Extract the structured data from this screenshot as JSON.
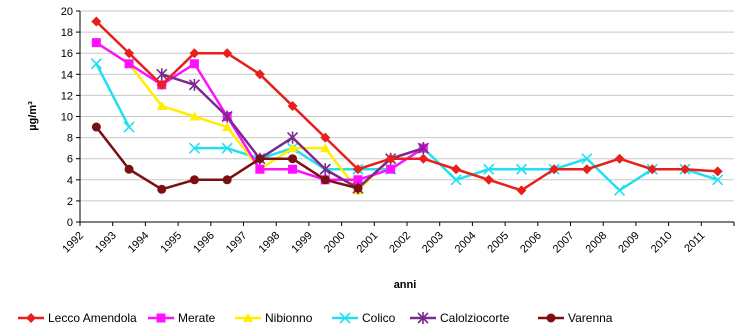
{
  "chart_data": {
    "type": "line",
    "title": "",
    "xlabel": "anni",
    "ylabel": "µg/m³",
    "ylim": [
      0,
      20
    ],
    "ytick_step": 2,
    "grid": "horizontal",
    "legend_position": "bottom",
    "categories": [
      "1992",
      "1993",
      "1994",
      "1995",
      "1996",
      "1997",
      "1998",
      "1999",
      "2000",
      "2001",
      "2002",
      "2003",
      "2004",
      "2005",
      "2006",
      "2007",
      "2008",
      "2009",
      "2010",
      "2011"
    ],
    "series": [
      {
        "name": "Lecco Amendola",
        "color": "#e8201c",
        "marker": "diamond",
        "points": [
          {
            "x": 1992.5,
            "y": 19
          },
          {
            "x": 1993.5,
            "y": 16
          },
          {
            "x": 1994.5,
            "y": 13
          },
          {
            "x": 1995.5,
            "y": 16
          },
          {
            "x": 1996.5,
            "y": 16
          },
          {
            "x": 1997.5,
            "y": 14
          },
          {
            "x": 1998.5,
            "y": 11
          },
          {
            "x": 1999.5,
            "y": 8
          },
          {
            "x": 2000.5,
            "y": 5
          },
          {
            "x": 2001.5,
            "y": 6
          },
          {
            "x": 2002.5,
            "y": 6
          },
          {
            "x": 2003.5,
            "y": 5
          },
          {
            "x": 2004.5,
            "y": 4
          },
          {
            "x": 2005.5,
            "y": 3
          },
          {
            "x": 2006.5,
            "y": 5
          },
          {
            "x": 2007.5,
            "y": 5
          },
          {
            "x": 2008.5,
            "y": 6
          },
          {
            "x": 2009.5,
            "y": 5
          },
          {
            "x": 2010.5,
            "y": 5
          },
          {
            "x": 2011.5,
            "y": 4.8
          }
        ]
      },
      {
        "name": "Merate",
        "color": "#ff10ff",
        "marker": "square",
        "points": [
          {
            "x": 1992.5,
            "y": 17
          },
          {
            "x": 1993.5,
            "y": 15
          },
          {
            "x": 1994.5,
            "y": 13
          },
          {
            "x": 1995.5,
            "y": 15
          },
          {
            "x": 1996.5,
            "y": 10
          },
          {
            "x": 1997.5,
            "y": 5
          },
          {
            "x": 1998.5,
            "y": 5
          },
          {
            "x": 1999.5,
            "y": 4
          },
          {
            "x": 2000.5,
            "y": 4
          },
          {
            "x": 2001.5,
            "y": 5
          },
          {
            "x": 2002.5,
            "y": 7
          }
        ]
      },
      {
        "name": "Nibionno",
        "color": "#ffee00",
        "marker": "triangle",
        "points": [
          {
            "x": 1992.5,
            "y": 17
          },
          {
            "x": 1993.5,
            "y": 15
          },
          {
            "x": 1994.5,
            "y": 11
          },
          {
            "x": 1995.5,
            "y": 10
          },
          {
            "x": 1996.5,
            "y": 9
          },
          {
            "x": 1997.5,
            "y": 5
          },
          {
            "x": 1998.5,
            "y": 7
          },
          {
            "x": 1999.5,
            "y": 7
          },
          {
            "x": 2000.5,
            "y": 3
          },
          {
            "x": 2001.5,
            "y": 6
          },
          {
            "x": 2002.5,
            "y": 7
          }
        ]
      },
      {
        "name": "Colico",
        "color": "#22e0f0",
        "marker": "star",
        "segments": [
          [
            {
              "x": 1992.5,
              "y": 15
            },
            {
              "x": 1993.5,
              "y": 9
            }
          ],
          [
            {
              "x": 1995.5,
              "y": 7
            },
            {
              "x": 1996.5,
              "y": 7
            },
            {
              "x": 1997.5,
              "y": 6
            },
            {
              "x": 1998.5,
              "y": 7
            },
            {
              "x": 1999.5,
              "y": 5
            },
            {
              "x": 2000.5,
              "y": 5
            },
            {
              "x": 2001.5,
              "y": 5
            },
            {
              "x": 2002.5,
              "y": 7
            },
            {
              "x": 2003.5,
              "y": 4
            },
            {
              "x": 2004.5,
              "y": 5
            },
            {
              "x": 2005.5,
              "y": 5
            },
            {
              "x": 2006.5,
              "y": 5
            },
            {
              "x": 2007.5,
              "y": 6
            },
            {
              "x": 2008.5,
              "y": 3
            },
            {
              "x": 2009.5,
              "y": 5
            },
            {
              "x": 2010.5,
              "y": 5
            },
            {
              "x": 2011.5,
              "y": 4
            }
          ]
        ]
      },
      {
        "name": "Calolziocorte",
        "color": "#7a2a8e",
        "marker": "asterisk",
        "points": [
          {
            "x": 1994.5,
            "y": 14
          },
          {
            "x": 1995.5,
            "y": 13
          },
          {
            "x": 1996.5,
            "y": 10
          },
          {
            "x": 1997.5,
            "y": 6
          },
          {
            "x": 1998.5,
            "y": 8
          },
          {
            "x": 1999.5,
            "y": 5
          },
          {
            "x": 2000.5,
            "y": 3.2
          },
          {
            "x": 2001.5,
            "y": 6
          },
          {
            "x": 2002.5,
            "y": 7
          }
        ]
      },
      {
        "name": "Varenna",
        "color": "#7a1010",
        "marker": "circle",
        "points": [
          {
            "x": 1992.5,
            "y": 9
          },
          {
            "x": 1993.5,
            "y": 5
          },
          {
            "x": 1994.5,
            "y": 3.1
          },
          {
            "x": 1995.5,
            "y": 4
          },
          {
            "x": 1996.5,
            "y": 4
          },
          {
            "x": 1997.5,
            "y": 6
          },
          {
            "x": 1998.5,
            "y": 6
          },
          {
            "x": 1999.5,
            "y": 4
          },
          {
            "x": 2000.5,
            "y": 3.2
          }
        ]
      }
    ]
  }
}
